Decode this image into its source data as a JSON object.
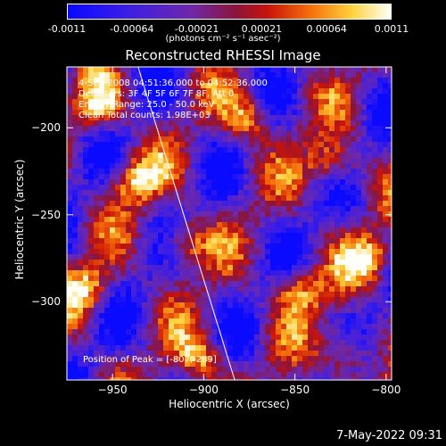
{
  "colorbar": {
    "ticks": [
      "-0.0011",
      "-0.00064",
      "-0.00021",
      "0.00021",
      "0.00064",
      "0.0011"
    ],
    "units": "(photons cm⁻² s⁻¹ asec⁻²)"
  },
  "annotations": {
    "time_range": "4-Sep-2008 04:51:36.000 to 04:52:36.000",
    "detectors": "Detectors: 3F 4F 5F 6F 7F 8F, Att 0",
    "energy": "Energy Range: 25.0 - 50.0 keV",
    "clean": "Clean    Total counts: 1.98E+03",
    "peak": "Position of Peak = [-807,-289]"
  },
  "timestamp": "7-May-2022 09:31",
  "chart_data": {
    "type": "heatmap",
    "title": "Reconstructed RHESSI Image",
    "xlabel": "Heliocentric X (arcsec)",
    "ylabel": "Heliocentric Y (arcsec)",
    "xlim": [
      -975,
      -797
    ],
    "ylim": [
      -345,
      -165
    ],
    "x_ticks": [
      -950,
      -900,
      -850,
      -800
    ],
    "x_tick_labels": [
      "−950",
      "−900",
      "−850",
      "−800"
    ],
    "y_ticks": [
      -200,
      -250,
      -300
    ],
    "y_tick_labels": [
      "−200",
      "−250",
      "−300"
    ],
    "color_range": [
      -0.0011,
      0.0011
    ],
    "colormap": "blue-purple-red-yellow-white",
    "limb_line": [
      [
        -936,
        -165
      ],
      [
        -883,
        -345
      ]
    ],
    "peak_position": [
      -807,
      -289
    ],
    "grid": false
  }
}
